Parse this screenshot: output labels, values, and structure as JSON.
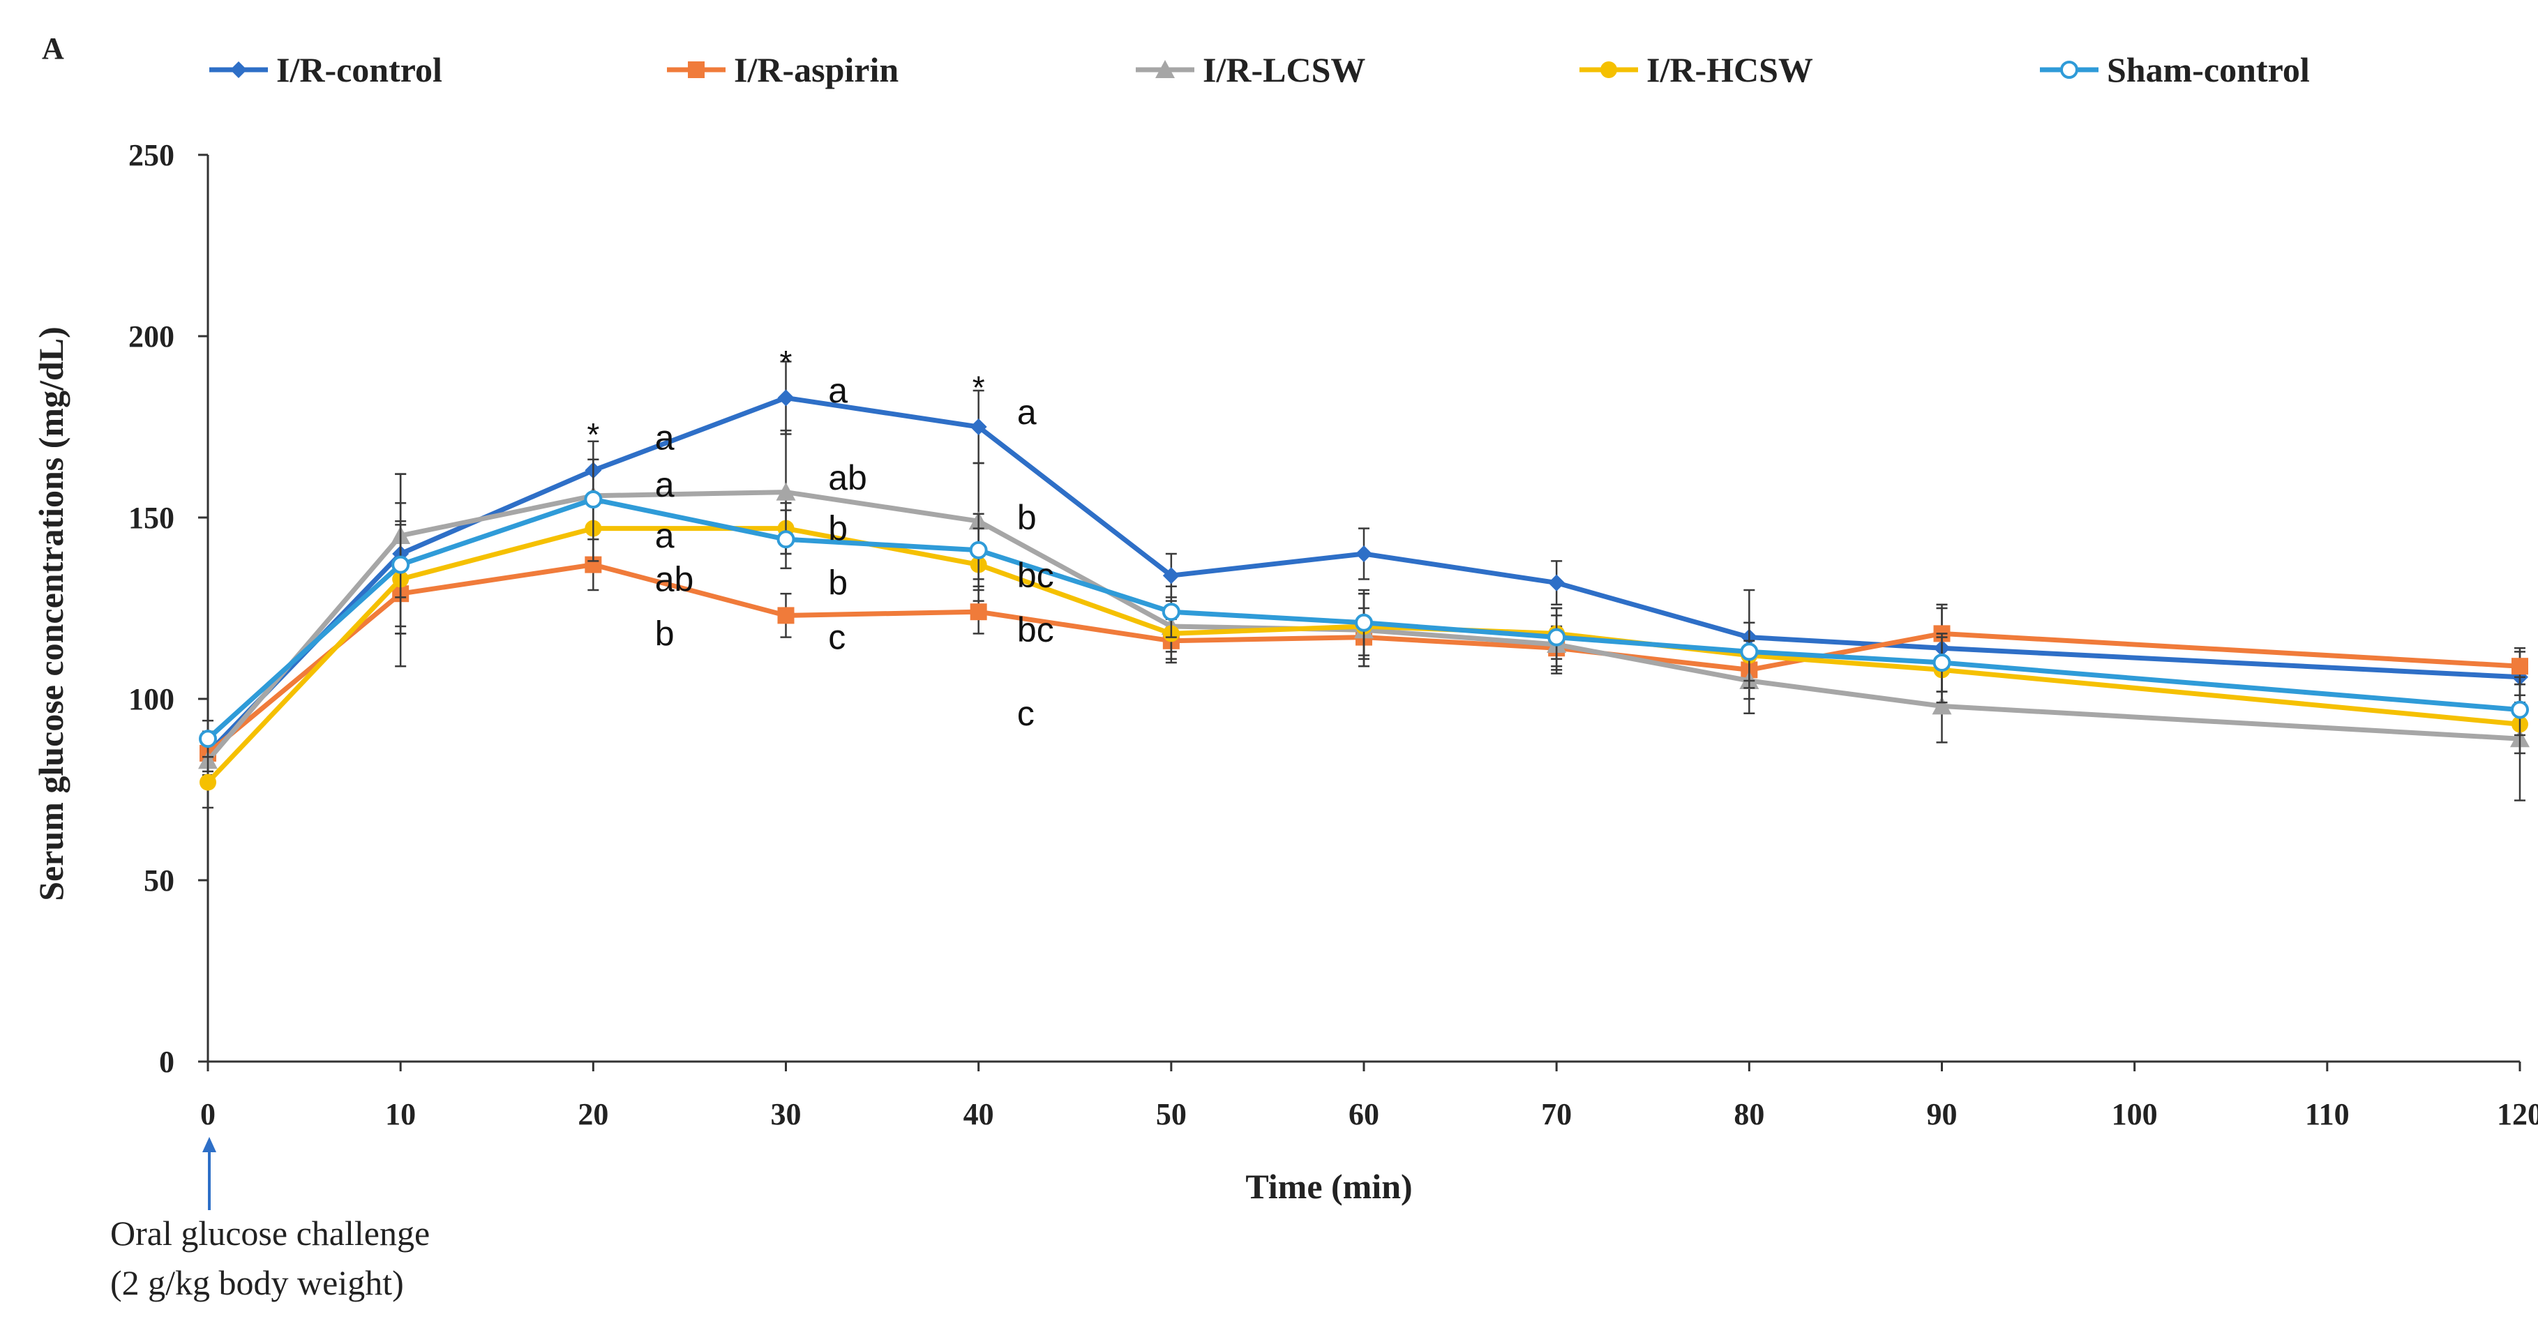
{
  "chart_data": {
    "type": "line",
    "panel_label": "A",
    "title": "",
    "xlabel": "Time (min)",
    "ylabel": "Serum glucose concentrations (mg/dL)",
    "xlim": [
      0,
      120
    ],
    "ylim": [
      0,
      250
    ],
    "x_ticks": [
      0,
      10,
      20,
      30,
      40,
      50,
      60,
      70,
      80,
      90,
      100,
      110,
      120
    ],
    "y_ticks": [
      0,
      50,
      100,
      150,
      200,
      250
    ],
    "x": [
      0,
      10,
      20,
      30,
      40,
      50,
      60,
      70,
      80,
      90,
      120
    ],
    "legend_position": "top",
    "grid": false,
    "series": [
      {
        "name": "I/R-control",
        "color": "#2E6FC7",
        "marker": "diamond",
        "values": [
          85,
          140,
          163,
          183,
          175,
          134,
          140,
          132,
          117,
          114,
          106
        ],
        "errors": [
          6,
          22,
          8,
          10,
          10,
          6,
          7,
          6,
          13,
          12,
          7
        ]
      },
      {
        "name": "I/R-aspirin",
        "color": "#F07B3A",
        "marker": "square",
        "values": [
          85,
          129,
          137,
          123,
          124,
          116,
          117,
          114,
          108,
          118,
          109
        ],
        "errors": [
          5,
          20,
          7,
          6,
          6,
          6,
          8,
          6,
          8,
          7,
          5
        ]
      },
      {
        "name": "I/R-LCSW",
        "color": "#A6A6A6",
        "marker": "triangle",
        "values": [
          83,
          145,
          156,
          157,
          149,
          120,
          119,
          115,
          105,
          98,
          89
        ],
        "errors": [
          6,
          17,
          10,
          17,
          16,
          7,
          10,
          8,
          9,
          10,
          17
        ]
      },
      {
        "name": "I/R-HCSW",
        "color": "#F5C000",
        "marker": "circle",
        "values": [
          77,
          133,
          147,
          147,
          137,
          118,
          120,
          118,
          112,
          108,
          93
        ],
        "errors": [
          7,
          15,
          9,
          7,
          10,
          7,
          9,
          7,
          9,
          9,
          8
        ]
      },
      {
        "name": "Sham-control",
        "color": "#2F9BD8",
        "marker": "circle-open",
        "values": [
          89,
          137,
          155,
          144,
          141,
          124,
          121,
          117,
          113,
          110,
          97
        ],
        "errors": [
          5,
          17,
          11,
          8,
          10,
          7,
          9,
          8,
          8,
          8,
          7
        ]
      }
    ],
    "annotations": [
      {
        "x": 20,
        "y": 174,
        "text": "*",
        "kind": "sig"
      },
      {
        "x": 30,
        "y": 194,
        "text": "*",
        "kind": "sig"
      },
      {
        "x": 40,
        "y": 187,
        "text": "*",
        "kind": "sig"
      },
      {
        "x": 23.2,
        "y": 172,
        "text": "a"
      },
      {
        "x": 23.2,
        "y": 159,
        "text": "a"
      },
      {
        "x": 23.2,
        "y": 145,
        "text": "a"
      },
      {
        "x": 23.2,
        "y": 133,
        "text": "ab"
      },
      {
        "x": 23.2,
        "y": 118,
        "text": "b"
      },
      {
        "x": 32.2,
        "y": 185,
        "text": "a"
      },
      {
        "x": 32.2,
        "y": 161,
        "text": "ab"
      },
      {
        "x": 32.2,
        "y": 147,
        "text": "b"
      },
      {
        "x": 32.2,
        "y": 132,
        "text": "b"
      },
      {
        "x": 32.2,
        "y": 117,
        "text": "c"
      },
      {
        "x": 42.0,
        "y": 179,
        "text": "a"
      },
      {
        "x": 42.0,
        "y": 150,
        "text": "b"
      },
      {
        "x": 42.0,
        "y": 134,
        "text": "bc"
      },
      {
        "x": 42.0,
        "y": 119,
        "text": "bc"
      },
      {
        "x": 42.0,
        "y": 96,
        "text": "c"
      }
    ],
    "challenge_note": {
      "x": 0,
      "line1": "Oral glucose challenge",
      "line2": "(2 g/kg body weight)"
    }
  }
}
